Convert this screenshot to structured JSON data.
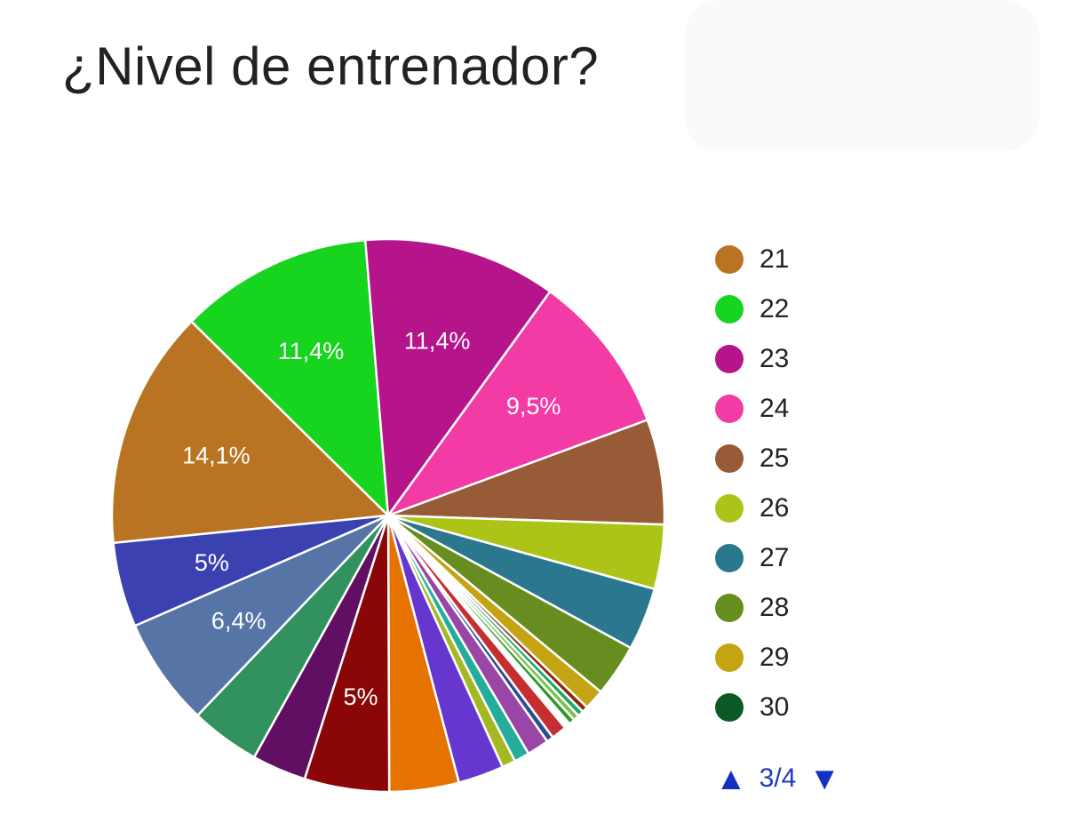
{
  "title": "¿Nivel de entrenador?",
  "chart_data": {
    "type": "pie",
    "start_angle_deg": 185.7,
    "slices": [
      {
        "value": 14.1,
        "color": "#b87422",
        "label": "14,1%"
      },
      {
        "value": 11.4,
        "color": "#17d41f",
        "label": "11,4%"
      },
      {
        "value": 11.4,
        "color": "#b5148a",
        "label": "11,4%"
      },
      {
        "value": 9.5,
        "color": "#f23ba5",
        "label": "9,5%"
      },
      {
        "value": 6.2,
        "color": "#985b37",
        "label": ""
      },
      {
        "value": 3.8,
        "color": "#acc418",
        "label": ""
      },
      {
        "value": 3.7,
        "color": "#2a778e",
        "label": ""
      },
      {
        "value": 3.1,
        "color": "#678d21",
        "label": ""
      },
      {
        "value": 1.2,
        "color": "#c5a413",
        "label": ""
      },
      {
        "value": 0.35,
        "color": "#8b2a0f",
        "label": ""
      },
      {
        "value": 0.35,
        "color": "#1fa66c",
        "label": ""
      },
      {
        "value": 0.35,
        "color": "#7fc24a",
        "label": ""
      },
      {
        "value": 0.35,
        "color": "#2e9a2e",
        "label": ""
      },
      {
        "value": 0.35,
        "color": "#ffffff",
        "label": ""
      },
      {
        "value": 0.9,
        "color": "#c62f32",
        "label": ""
      },
      {
        "value": 0.4,
        "color": "#2b4e8e",
        "label": ""
      },
      {
        "value": 1.3,
        "color": "#9a46a6",
        "label": ""
      },
      {
        "value": 0.9,
        "color": "#23ad9a",
        "label": ""
      },
      {
        "value": 0.8,
        "color": "#a5b821",
        "label": ""
      },
      {
        "value": 2.7,
        "color": "#6736cf",
        "label": ""
      },
      {
        "value": 4.1,
        "color": "#e67200",
        "label": ""
      },
      {
        "value": 5.0,
        "color": "#8b0606",
        "label": "5%"
      },
      {
        "value": 3.2,
        "color": "#600f63",
        "label": ""
      },
      {
        "value": 4.1,
        "color": "#32925f",
        "label": ""
      },
      {
        "value": 6.4,
        "color": "#5675a6",
        "label": "6,4%"
      },
      {
        "value": 5.0,
        "color": "#3b41b0",
        "label": "5%"
      }
    ],
    "legend_placement": "right",
    "legend": [
      {
        "name": "21",
        "color": "#b87422"
      },
      {
        "name": "22",
        "color": "#17d41f"
      },
      {
        "name": "23",
        "color": "#b5148a"
      },
      {
        "name": "24",
        "color": "#f23ba5"
      },
      {
        "name": "25",
        "color": "#985b37"
      },
      {
        "name": "26",
        "color": "#acc418"
      },
      {
        "name": "27",
        "color": "#2a778e"
      },
      {
        "name": "28",
        "color": "#678d21"
      },
      {
        "name": "29",
        "color": "#c5a413"
      },
      {
        "name": "30",
        "color": "#0b5a26"
      }
    ]
  },
  "pager": {
    "up_icon": "triangle-up-icon",
    "down_icon": "triangle-down-icon",
    "text": "3/4"
  }
}
